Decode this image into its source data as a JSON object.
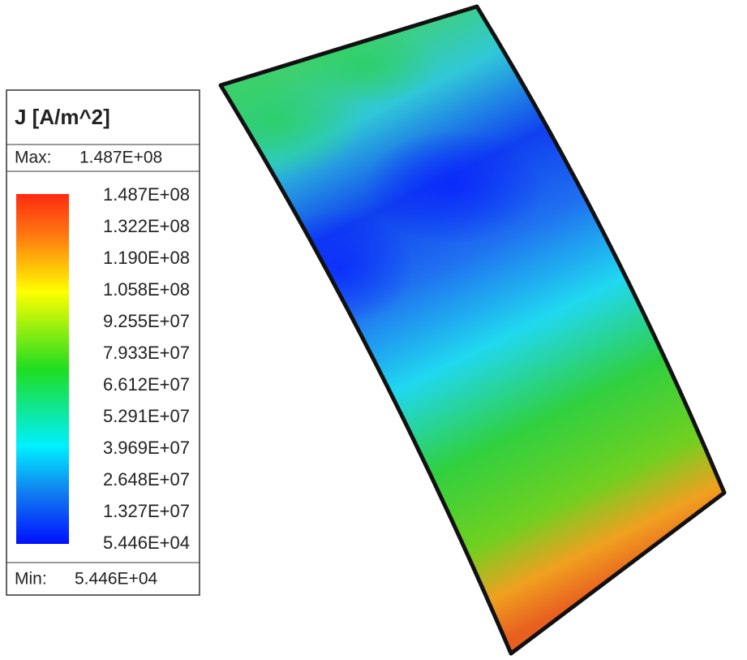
{
  "legend": {
    "title": "J [A/m^2]",
    "max_label": "Max:",
    "max_value": "1.487E+08",
    "ticks": [
      "1.487E+08",
      "1.322E+08",
      "1.190E+08",
      "1.058E+08",
      "9.255E+07",
      "7.933E+07",
      "6.612E+07",
      "5.291E+07",
      "3.969E+07",
      "2.648E+07",
      "1.327E+07",
      "5.446E+04"
    ],
    "min_label": "Min:",
    "min_value": "5.446E+04"
  }
}
